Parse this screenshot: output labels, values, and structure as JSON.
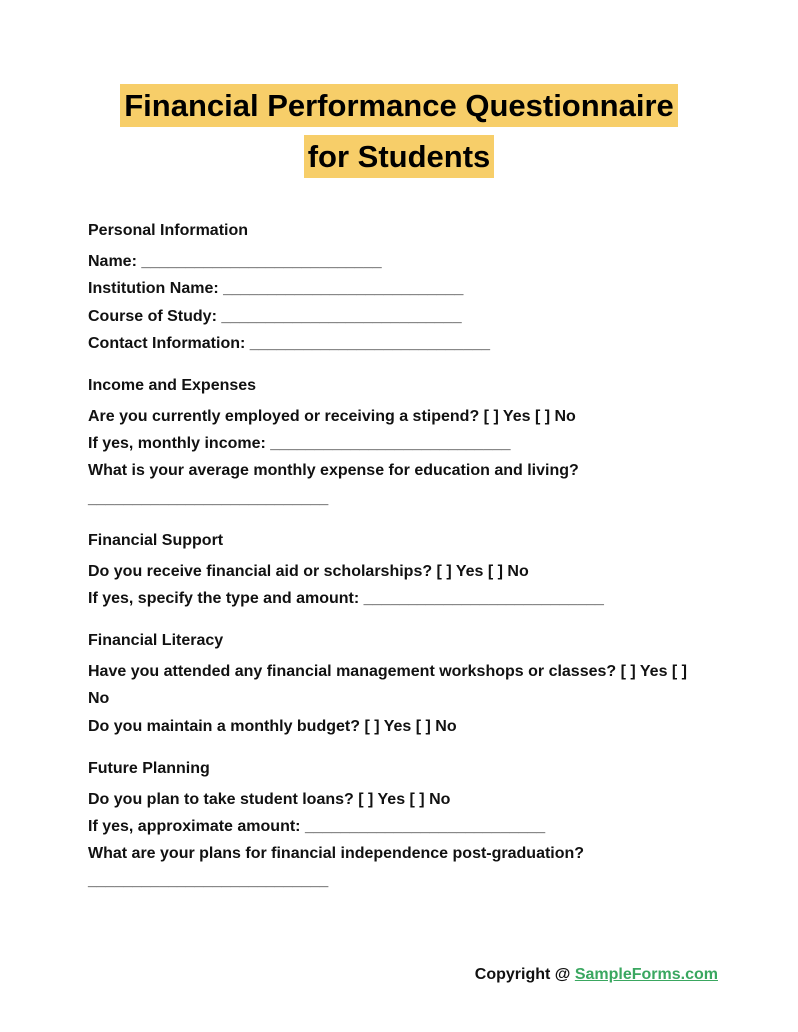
{
  "title_line1": "Financial Performance Questionnaire",
  "title_line2": "for Students",
  "highlight_color": "#f7ce69",
  "blank": "___________________________",
  "sections": {
    "personal": {
      "heading": "Personal Information",
      "name_label": "Name: ",
      "institution_label": "Institution Name: ",
      "course_label": "Course of Study: ",
      "contact_label": "Contact Information: "
    },
    "income": {
      "heading": "Income and Expenses",
      "employed_q": "Are you currently employed or receiving a stipend? [ ] Yes [ ] No",
      "income_label": "If yes, monthly income: ",
      "expense_q": "What is your average monthly expense for education and living?"
    },
    "support": {
      "heading": "Financial Support",
      "aid_q": "Do you receive financial aid or scholarships? [ ] Yes [ ] No",
      "specify_label": "If yes, specify the type and amount: "
    },
    "literacy": {
      "heading": "Financial Literacy",
      "workshop_q": "Have you attended any financial management workshops or classes? [ ] Yes [ ] No",
      "budget_q": "Do you maintain a monthly budget? [ ] Yes [ ] No"
    },
    "future": {
      "heading": "Future Planning",
      "loans_q": "Do you plan to take student loans? [ ] Yes [ ] No",
      "amount_label": "If yes, approximate amount: ",
      "plans_q": "What are your plans for financial independence post-graduation?"
    }
  },
  "footer": {
    "copyright": "Copyright @ ",
    "link_text": "SampleForms.com",
    "link_color": "#3aa760"
  }
}
